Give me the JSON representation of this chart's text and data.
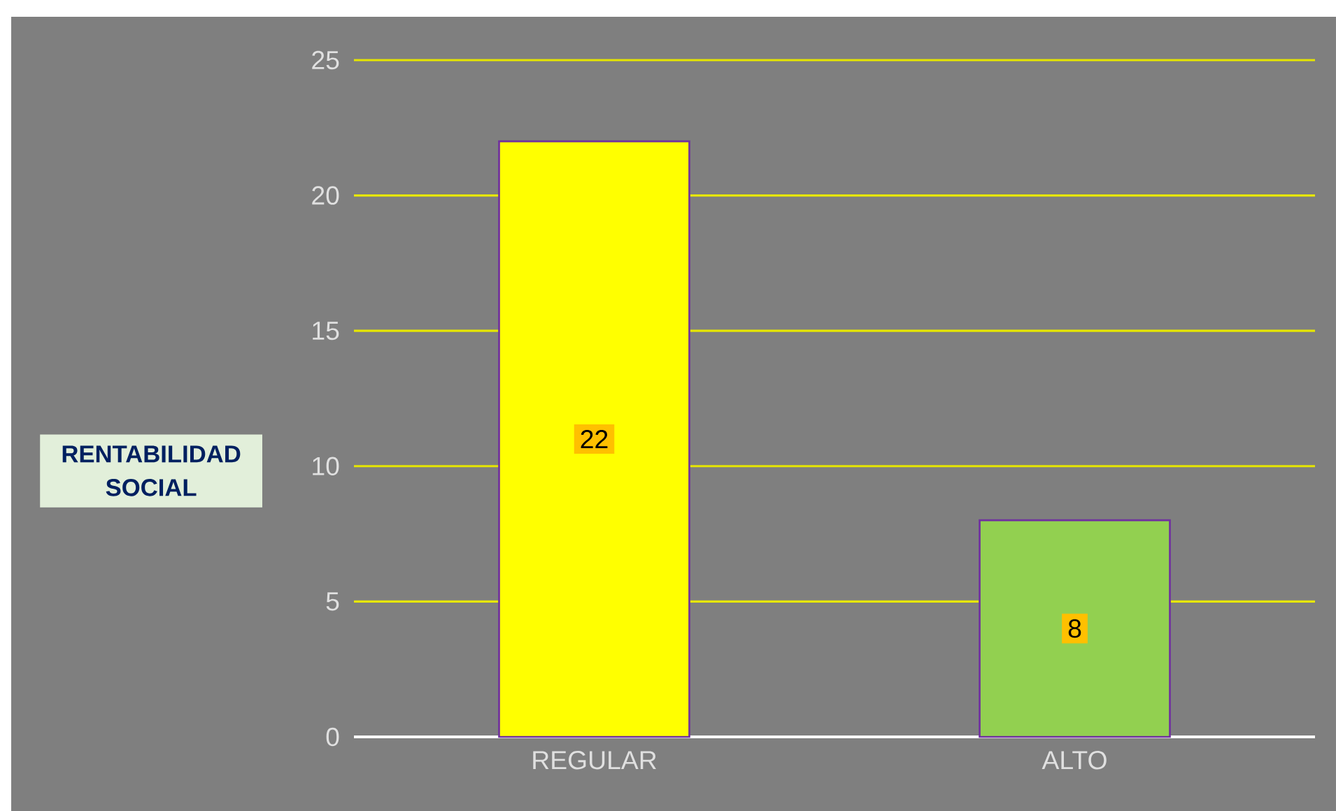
{
  "chart_data": {
    "type": "bar",
    "ylabel": "RENTABILIDAD SOCIAL",
    "categories": [
      "REGULAR",
      "ALTO"
    ],
    "values": [
      22,
      8
    ],
    "colors": [
      "#ffff00",
      "#92d050"
    ],
    "ylim": [
      0,
      25
    ],
    "yticks": [
      0,
      5,
      10,
      15,
      20,
      25
    ],
    "grid": "y",
    "data_labels": true
  }
}
